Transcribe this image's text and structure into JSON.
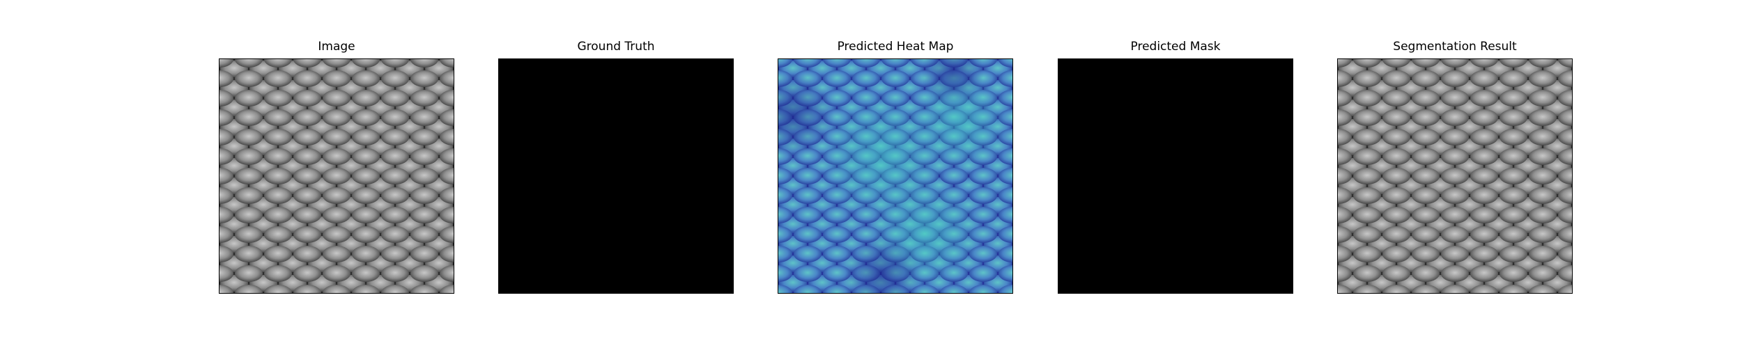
{
  "figure": {
    "panels": [
      {
        "title": "Image",
        "kind": "texture-gray",
        "icon": "woven-mesh-texture"
      },
      {
        "title": "Ground Truth",
        "kind": "solid-black",
        "icon": "empty-mask"
      },
      {
        "title": "Predicted Heat Map",
        "kind": "texture-heat",
        "icon": "heatmap-overlay"
      },
      {
        "title": "Predicted Mask",
        "kind": "solid-black",
        "icon": "empty-mask"
      },
      {
        "title": "Segmentation Result",
        "kind": "texture-gray",
        "icon": "woven-mesh-texture"
      }
    ]
  },
  "colors": {
    "mask": "#000000",
    "texture_light": "#bdbdbd",
    "texture_mid": "#8a8a8a",
    "texture_dark": "#2e2e2e",
    "heat_base": "#4a78c4",
    "heat_cyan": "#46b8c0",
    "heat_dark": "#2a3a9a"
  }
}
